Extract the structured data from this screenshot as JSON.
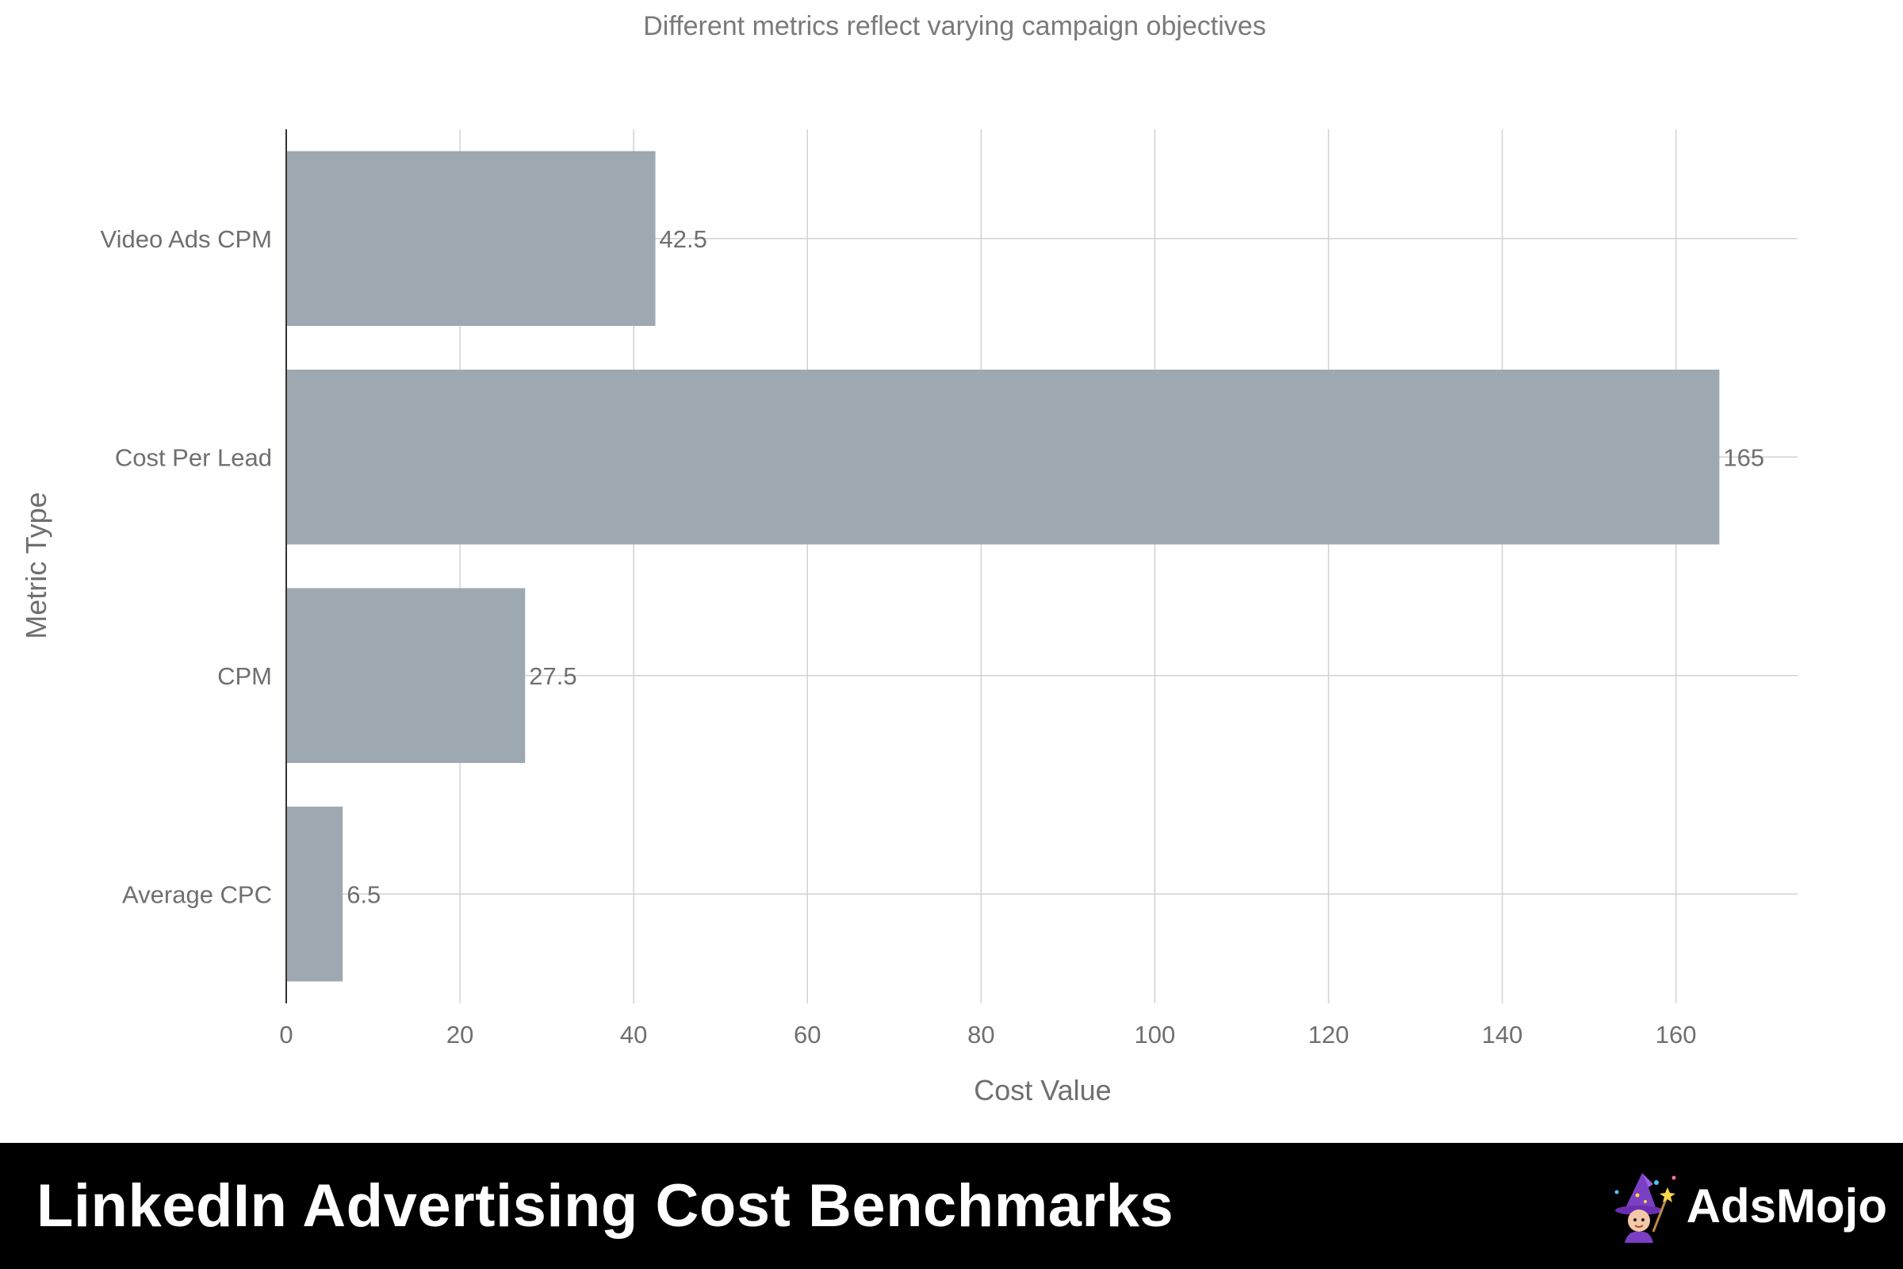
{
  "chart_data": {
    "type": "bar",
    "orientation": "horizontal",
    "title": "",
    "subtitle": "Different metrics reflect varying campaign objectives",
    "xlabel": "Cost Value",
    "ylabel": "Metric Type",
    "categories": [
      "Video Ads CPM",
      "Cost Per Lead",
      "CPM",
      "Average CPC"
    ],
    "values": [
      42.5,
      165,
      27.5,
      6.5
    ],
    "data_labels": [
      "42.5",
      "165",
      "27.5",
      "6.5"
    ],
    "xlim": [
      0,
      174
    ],
    "xticks": [
      0,
      20,
      40,
      60,
      80,
      100,
      120,
      140,
      160
    ],
    "bar_color": "#9ea8b0",
    "grid": true,
    "legend": "none"
  },
  "footer": {
    "title": "LinkedIn Advertising Cost Benchmarks",
    "brand_name": "AdsMojo",
    "brand_logo_icon": "wizard-mascot-icon",
    "background": "#000000"
  }
}
